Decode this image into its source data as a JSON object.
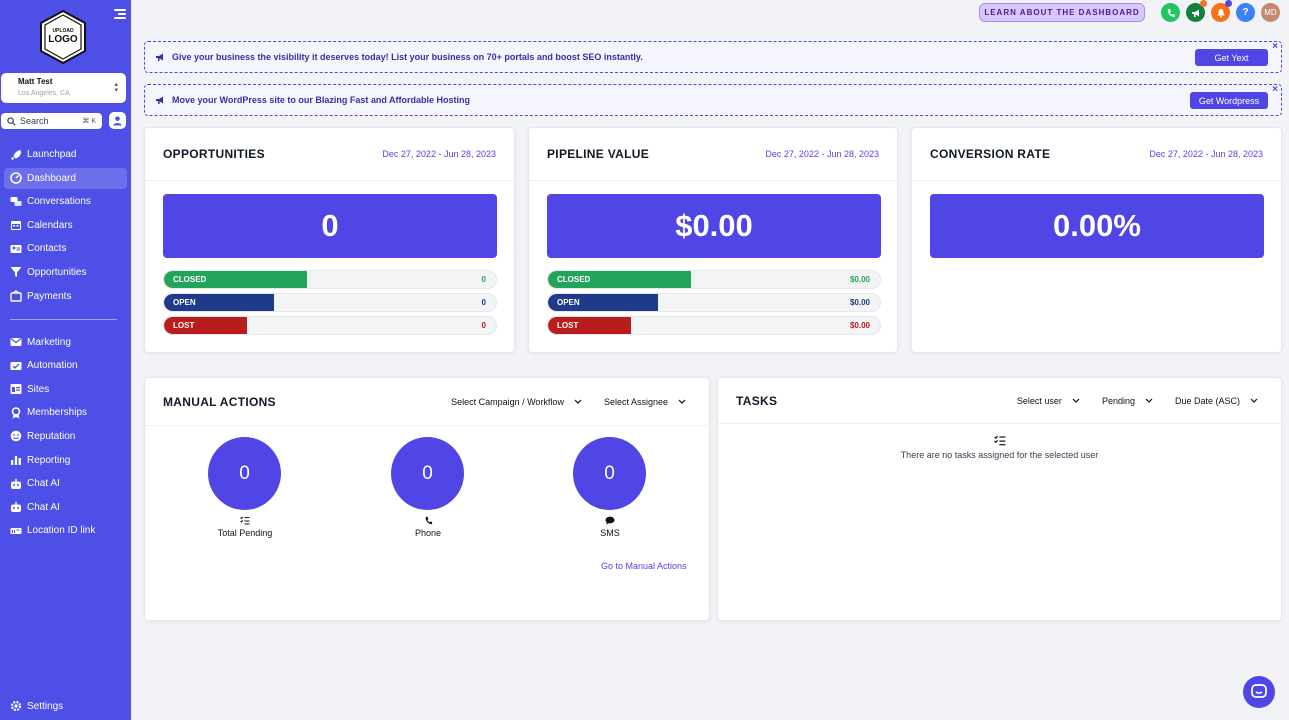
{
  "sidebar": {
    "logo_text_top": "UPLOAD",
    "logo_text_main": "LOGO",
    "account": {
      "name": "Matt Test",
      "location": "Los Angeles, CA"
    },
    "search": {
      "label": "Search",
      "shortcut": "⌘ K"
    },
    "items_top": [
      {
        "label": "Launchpad",
        "icon": "rocket-icon"
      },
      {
        "label": "Dashboard",
        "icon": "dashboard-icon",
        "active": true
      },
      {
        "label": "Conversations",
        "icon": "chat-icon"
      },
      {
        "label": "Calendars",
        "icon": "calendar-icon"
      },
      {
        "label": "Contacts",
        "icon": "contacts-icon"
      },
      {
        "label": "Opportunities",
        "icon": "funnel-icon"
      },
      {
        "label": "Payments",
        "icon": "payments-icon"
      }
    ],
    "items_bottom": [
      {
        "label": "Marketing",
        "icon": "megaphone-icon"
      },
      {
        "label": "Automation",
        "icon": "automation-icon"
      },
      {
        "label": "Sites",
        "icon": "sites-icon"
      },
      {
        "label": "Memberships",
        "icon": "membership-icon"
      },
      {
        "label": "Reputation",
        "icon": "reputation-icon"
      },
      {
        "label": "Reporting",
        "icon": "reporting-icon"
      },
      {
        "label": "Chat AI",
        "icon": "robot-icon"
      },
      {
        "label": "Chat AI",
        "icon": "robot-icon"
      },
      {
        "label": "Location ID link",
        "icon": "link-icon"
      }
    ],
    "settings_label": "Settings"
  },
  "header": {
    "learn_button": "LEARN ABOUT THE DASHBOARD",
    "avatar_initials": "MD",
    "help_label": "?",
    "colors": {
      "phone": "#22c55e",
      "announce": "#15803d",
      "bell": "#f97316",
      "help": "#3b82f6"
    }
  },
  "banners": [
    {
      "text": "Give your business the visibility it deserves today! List your business on 70+ portals and boost SEO instantly.",
      "button": "Get Yext"
    },
    {
      "text": "Move your WordPress site to our Blazing Fast and Affordable Hosting",
      "button": "Get Wordpress"
    }
  ],
  "stats": [
    {
      "title": "OPPORTUNITIES",
      "date_range": "Dec 27, 2022 - Jun 28, 2023",
      "value": "0",
      "bars": [
        {
          "label": "CLOSED",
          "value": "0"
        },
        {
          "label": "OPEN",
          "value": "0"
        },
        {
          "label": "LOST",
          "value": "0"
        }
      ]
    },
    {
      "title": "PIPELINE VALUE",
      "date_range": "Dec 27, 2022 - Jun 28, 2023",
      "value": "$0.00",
      "bars": [
        {
          "label": "CLOSED",
          "value": "$0.00"
        },
        {
          "label": "OPEN",
          "value": "$0.00"
        },
        {
          "label": "LOST",
          "value": "$0.00"
        }
      ]
    },
    {
      "title": "CONVERSION RATE",
      "date_range": "Dec 27, 2022 - Jun 28, 2023",
      "value": "0.00%"
    }
  ],
  "bar_colors": {
    "closed": "#22a55a",
    "open": "#1e3a8a",
    "lost": "#b91c1c"
  },
  "manual_actions": {
    "title": "MANUAL ACTIONS",
    "campaign_select": "Select Campaign / Workflow",
    "assignee_select": "Select Assignee",
    "items": [
      {
        "value": "0",
        "label": "Total Pending",
        "icon": "checklist-icon"
      },
      {
        "value": "0",
        "label": "Phone",
        "icon": "phone-icon"
      },
      {
        "value": "0",
        "label": "SMS",
        "icon": "sms-icon"
      }
    ],
    "link": "Go to Manual Actions"
  },
  "tasks": {
    "title": "TASKS",
    "user_select": "Select user",
    "status_select": "Pending",
    "sort_select": "Due Date (ASC)",
    "empty_text": "There are no tasks assigned for the selected user"
  }
}
